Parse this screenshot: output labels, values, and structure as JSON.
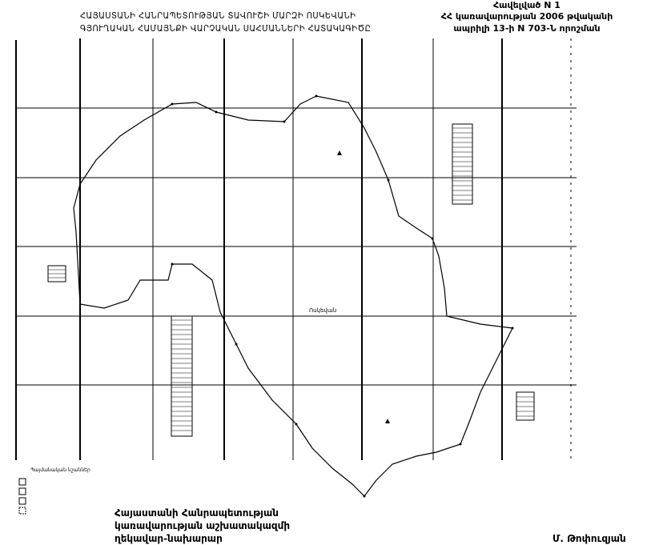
{
  "header": {
    "title_line1": "ՀԱՅԱՍՏԱՆԻ ՀԱՆՐԱՊԵՏՈՒԹՅԱՆ ՏԱՎՈՒՇԻ ՄԱՐԶԻ ՈՍԿԵՎԱՆԻ",
    "title_line2": "ԳՅՈՒՂԱԿԱՆ ՀԱՄԱՅՆՔԻ ՎԱՐՉԱԿԱՆ ՍԱՀՄԱՆՆԵՐԻ ՀԱՏԱԿԱԳԻԾԸ",
    "annex_line1": "Հավելված N 1",
    "annex_line2": "ՀՀ կառավարության 2006 թվականի",
    "annex_line3": "ապրիլի 13-ի N 703-Ն որոշման"
  },
  "map": {
    "center_label": "Ոսկեվան",
    "legend_title": "Պայմանական նշաններ",
    "icons": [
      "settlement-icon"
    ]
  },
  "footer": {
    "sign_line1": "Հայաստանի Հանրապետության",
    "sign_line2": "կառավարության աշխատակազմի",
    "sign_line3": "ղեկավար-նախարար",
    "signatory": "Մ. Թոփուզյան"
  }
}
